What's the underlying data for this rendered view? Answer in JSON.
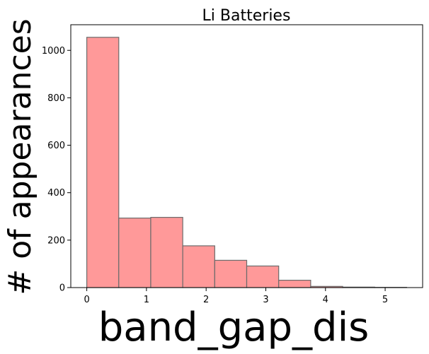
{
  "chart_data": {
    "type": "bar",
    "title": "Li Batteries",
    "xlabel": "band_gap_dis",
    "ylabel": "# of appearances",
    "bin_edges": [
      0.0,
      0.536,
      1.072,
      1.608,
      2.144,
      2.68,
      3.216,
      3.752,
      4.288,
      4.824,
      5.36
    ],
    "values": [
      1055,
      293,
      296,
      176,
      115,
      91,
      31,
      5,
      2,
      1
    ],
    "xlim": [
      -0.268,
      5.628
    ],
    "ylim": [
      0,
      1108
    ],
    "xticks": [
      0,
      1,
      2,
      3,
      4,
      5
    ],
    "yticks": [
      0,
      200,
      400,
      600,
      800,
      1000
    ],
    "bar_color": "#ff9999",
    "edge_color": "#6b6b6b",
    "grid": false
  }
}
